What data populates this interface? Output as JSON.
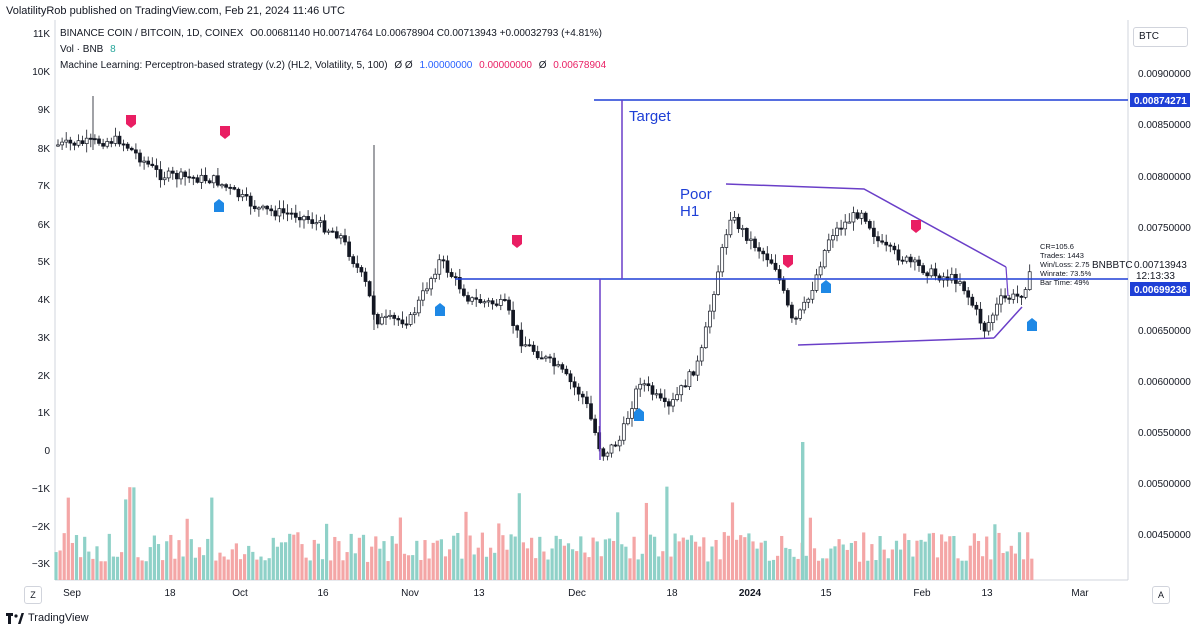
{
  "publisher": "VolatilityRob published on TradingView.com, Feb 21, 2024 11:46 UTC",
  "legend": {
    "symbol": "BINANCE COIN / BITCOIN, 1D, COINEX",
    "ohlc": "O0.00681140 H0.00714764 L0.00678904 C0.00713943 +0.00032793 (+4.81%)",
    "vol_label": "Vol · BNB",
    "vol_value": "8",
    "indicator": "Machine Learning: Perceptron-based strategy (v.2) (HL2, Volatility, 5, 100)",
    "ind_sym1": "Ø",
    "ind_sym2": "Ø",
    "ind_val1": "1.00000000",
    "ind_val2": "0.00000000",
    "ind_sym3": "Ø",
    "ind_val3": "0.00678904"
  },
  "currency_box": "BTC",
  "footer_brand": "TradingView",
  "z_button": "Z",
  "a_button": "A",
  "left_axis": [
    "11K",
    "10K",
    "9K",
    "8K",
    "7K",
    "6K",
    "5K",
    "4K",
    "3K",
    "2K",
    "1K",
    "0",
    "−1K",
    "−2K",
    "−3K"
  ],
  "right_axis": [
    "0.00900000",
    "0.00850000",
    "0.00800000",
    "0.00750000",
    "0.00650000",
    "0.00600000",
    "0.00550000",
    "0.00500000",
    "0.00450000"
  ],
  "price_tags": {
    "target": "0.00874271",
    "current": "0.00713943",
    "countdown": "12:13:33",
    "symbol": "BNBBTC",
    "support": "0.00699236"
  },
  "time_axis": [
    "Sep",
    "18",
    "Oct",
    "16",
    "Nov",
    "13",
    "Dec",
    "18",
    "2024",
    "15",
    "Feb",
    "13",
    "Mar"
  ],
  "annotations": {
    "target": "Target",
    "poor": "Poor",
    "h1": "H1"
  },
  "stats": [
    "CR=105.6",
    "Trades: 1443",
    "Win/Loss: 2.75",
    "Winrate: 73.5%",
    "Bar Time: 49%"
  ],
  "colors": {
    "blue_line": "#1e3fd6",
    "purple": "#6a3fc8",
    "buy": "#1e88e5",
    "sell": "#e91e63",
    "vol_up": "#8fd1c8",
    "vol_down": "#f4a6a6"
  },
  "chart_data": {
    "type": "candlestick",
    "price_levels": {
      "target": 0.00874271,
      "support": 0.00699236,
      "current": 0.00713943
    },
    "price_axis_range": [
      0.0041,
      0.0093
    ]
  }
}
